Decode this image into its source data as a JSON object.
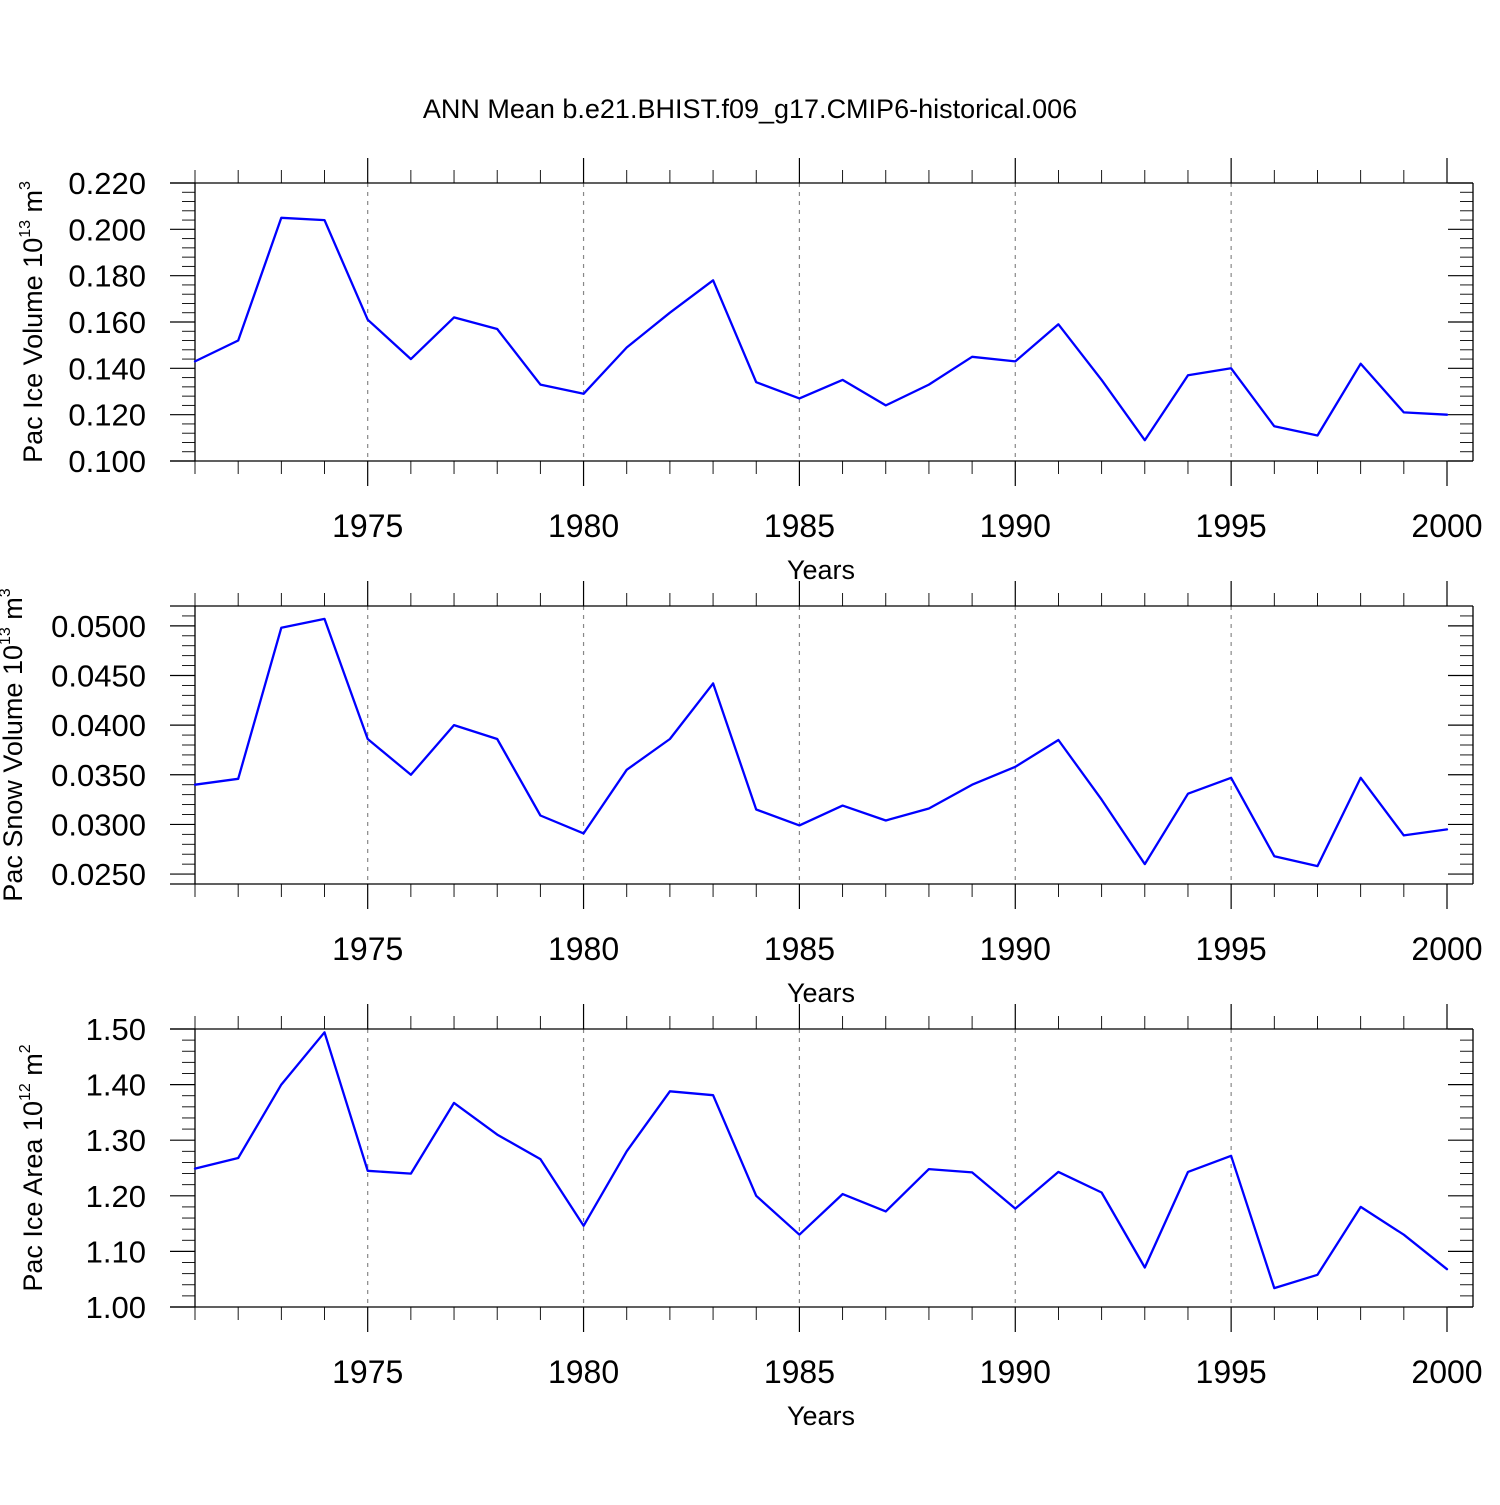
{
  "figure": {
    "title": "ANN Mean b.e21.BHIST.f09_g17.CMIP6-historical.006",
    "line_color": "#0000ff"
  },
  "chart_data": [
    {
      "type": "line",
      "title": "",
      "xlabel": "Years",
      "ylabel_parts": [
        "Pac Ice Volume 10",
        "13",
        " m",
        "3"
      ],
      "xlim": [
        1971,
        2000
      ],
      "ylim": [
        0.1,
        0.22
      ],
      "x_ticks": [
        1975,
        1980,
        1985,
        1990,
        1995,
        2000
      ],
      "x_tick_labels": [
        "1975",
        "1980",
        "1985",
        "1990",
        "1995",
        "2000"
      ],
      "x_minor_step": 1,
      "y_ticks": [
        0.1,
        0.12,
        0.14,
        0.16,
        0.18,
        0.2,
        0.22
      ],
      "y_tick_labels": [
        "0.100",
        "0.120",
        "0.140",
        "0.160",
        "0.180",
        "0.200",
        "0.220"
      ],
      "y_minor_step": 0.004,
      "grid": "x-dashed",
      "x": [
        1971,
        1972,
        1973,
        1974,
        1975,
        1976,
        1977,
        1978,
        1979,
        1980,
        1981,
        1982,
        1983,
        1984,
        1985,
        1986,
        1987,
        1988,
        1989,
        1990,
        1991,
        1992,
        1993,
        1994,
        1995,
        1996,
        1997,
        1998,
        1999,
        2000
      ],
      "series": [
        {
          "values": [
            0.143,
            0.152,
            0.205,
            0.204,
            0.161,
            0.144,
            0.162,
            0.157,
            0.133,
            0.129,
            0.149,
            0.164,
            0.178,
            0.134,
            0.127,
            0.135,
            0.124,
            0.133,
            0.145,
            0.143,
            0.159,
            0.135,
            0.109,
            0.137,
            0.14,
            0.115,
            0.111,
            0.142,
            0.121,
            0.12
          ]
        }
      ]
    },
    {
      "type": "line",
      "title": "",
      "xlabel": "Years",
      "ylabel_parts": [
        "Pac Snow Volume 10",
        "13",
        " m",
        "3"
      ],
      "xlim": [
        1971,
        2000
      ],
      "ylim": [
        0.024,
        0.052
      ],
      "x_ticks": [
        1975,
        1980,
        1985,
        1990,
        1995,
        2000
      ],
      "x_tick_labels": [
        "1975",
        "1980",
        "1985",
        "1990",
        "1995",
        "2000"
      ],
      "x_minor_step": 1,
      "y_ticks": [
        0.025,
        0.03,
        0.035,
        0.04,
        0.045,
        0.05
      ],
      "y_tick_labels": [
        "0.0250",
        "0.0300",
        "0.0350",
        "0.0400",
        "0.0450",
        "0.0500"
      ],
      "y_minor_step": 0.001,
      "grid": "x-dashed",
      "x": [
        1971,
        1972,
        1973,
        1974,
        1975,
        1976,
        1977,
        1978,
        1979,
        1980,
        1981,
        1982,
        1983,
        1984,
        1985,
        1986,
        1987,
        1988,
        1989,
        1990,
        1991,
        1992,
        1993,
        1994,
        1995,
        1996,
        1997,
        1998,
        1999,
        2000
      ],
      "series": [
        {
          "values": [
            0.034,
            0.0346,
            0.0498,
            0.0507,
            0.0386,
            0.035,
            0.04,
            0.0386,
            0.0309,
            0.0291,
            0.0355,
            0.0386,
            0.0442,
            0.0315,
            0.0299,
            0.0319,
            0.0304,
            0.0316,
            0.034,
            0.0358,
            0.0385,
            0.0325,
            0.026,
            0.0331,
            0.0347,
            0.0268,
            0.0258,
            0.0347,
            0.0289,
            0.0295
          ]
        }
      ]
    },
    {
      "type": "line",
      "title": "",
      "xlabel": "Years",
      "ylabel_parts": [
        "Pac Ice Area 10",
        "12",
        " m",
        "2"
      ],
      "xlim": [
        1971,
        2000
      ],
      "ylim": [
        1.0,
        1.5
      ],
      "x_ticks": [
        1975,
        1980,
        1985,
        1990,
        1995,
        2000
      ],
      "x_tick_labels": [
        "1975",
        "1980",
        "1985",
        "1990",
        "1995",
        "2000"
      ],
      "x_minor_step": 1,
      "y_ticks": [
        1.0,
        1.1,
        1.2,
        1.3,
        1.4,
        1.5
      ],
      "y_tick_labels": [
        "1.00",
        "1.10",
        "1.20",
        "1.30",
        "1.40",
        "1.50"
      ],
      "y_minor_step": 0.02,
      "grid": "x-dashed",
      "x": [
        1971,
        1972,
        1973,
        1974,
        1975,
        1976,
        1977,
        1978,
        1979,
        1980,
        1981,
        1982,
        1983,
        1984,
        1985,
        1986,
        1987,
        1988,
        1989,
        1990,
        1991,
        1992,
        1993,
        1994,
        1995,
        1996,
        1997,
        1998,
        1999,
        2000
      ],
      "series": [
        {
          "values": [
            1.249,
            1.268,
            1.4,
            1.494,
            1.245,
            1.24,
            1.367,
            1.31,
            1.266,
            1.146,
            1.28,
            1.388,
            1.381,
            1.2,
            1.13,
            1.203,
            1.172,
            1.248,
            1.242,
            1.177,
            1.243,
            1.206,
            1.071,
            1.243,
            1.272,
            1.034,
            1.058,
            1.18,
            1.13,
            1.068
          ]
        }
      ]
    }
  ]
}
